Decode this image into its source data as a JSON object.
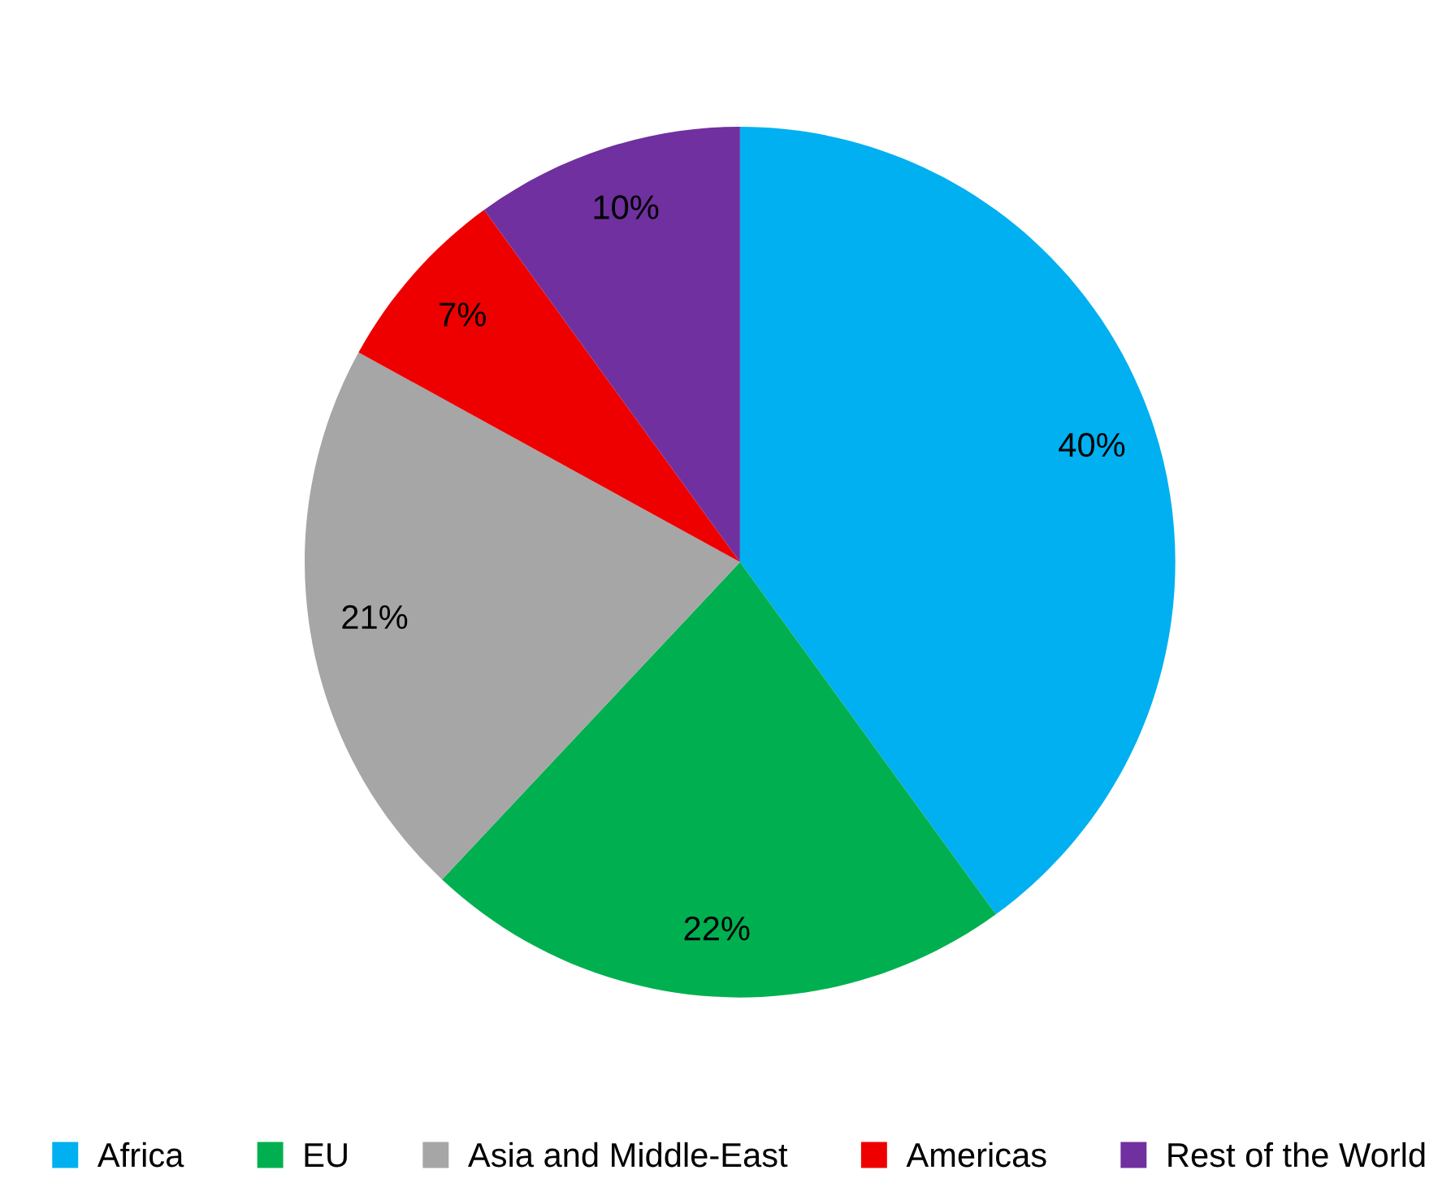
{
  "chart_data": {
    "type": "pie",
    "categories": [
      "Africa",
      "EU",
      "Asia and Middle-East",
      "Americas",
      "Rest of the World"
    ],
    "values": [
      40,
      22,
      21,
      7,
      10
    ],
    "colors": [
      "#00b0f0",
      "#00b050",
      "#a6a6a6",
      "#ee0000",
      "#7030a0"
    ],
    "value_labels": [
      "40%",
      "22%",
      "21%",
      "7%",
      "10%"
    ],
    "legend": "bottom"
  }
}
